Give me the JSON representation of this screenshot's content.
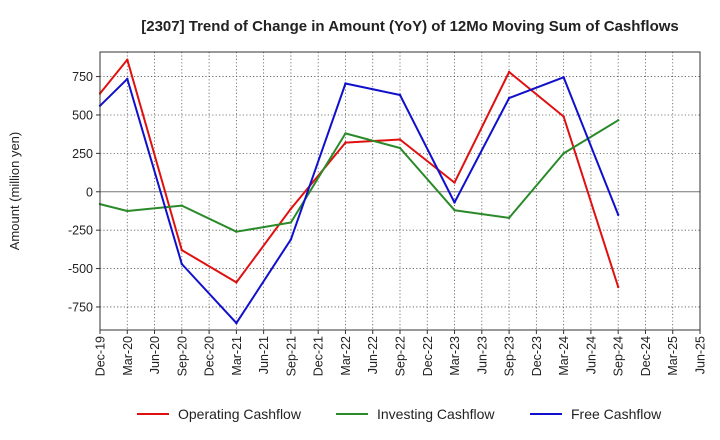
{
  "chart_data": {
    "type": "line",
    "title": "[2307]  Trend of Change in Amount (YoY) of 12Mo Moving Sum of Cashflows",
    "xlabel": "",
    "ylabel": "Amount (million yen)",
    "ylim": [
      -900,
      910
    ],
    "yticks": [
      -750,
      -500,
      -250,
      0,
      250,
      500,
      750
    ],
    "ytick_labels": [
      "-750",
      "-500",
      "-250",
      "0",
      "250",
      "500",
      "750"
    ],
    "categories": [
      "Dec-19",
      "Mar-20",
      "Jun-20",
      "Sep-20",
      "Dec-20",
      "Mar-21",
      "Jun-21",
      "Sep-21",
      "Dec-21",
      "Mar-22",
      "Jun-22",
      "Sep-22",
      "Dec-22",
      "Mar-23",
      "Jun-23",
      "Sep-23",
      "Dec-23",
      "Mar-24",
      "Jun-24",
      "Sep-24",
      "Dec-24",
      "Mar-25",
      "Jun-25"
    ],
    "grid": true,
    "legend_position": "bottom",
    "series": [
      {
        "name": "Operating Cashflow",
        "color": "#e01010",
        "values": [
          640,
          860,
          null,
          -380,
          null,
          -590,
          null,
          -110,
          null,
          320,
          null,
          340,
          null,
          60,
          null,
          780,
          null,
          490,
          null,
          -620,
          null,
          null,
          null
        ]
      },
      {
        "name": "Investing Cashflow",
        "color": "#2a8a2a",
        "values": [
          -80,
          -125,
          null,
          -90,
          null,
          -260,
          null,
          -200,
          null,
          380,
          null,
          285,
          null,
          -120,
          null,
          -170,
          null,
          250,
          null,
          465,
          null,
          null,
          null
        ]
      },
      {
        "name": "Free Cashflow",
        "color": "#1010cc",
        "values": [
          560,
          735,
          null,
          -470,
          null,
          -855,
          null,
          -310,
          null,
          705,
          null,
          630,
          null,
          -70,
          null,
          610,
          null,
          745,
          null,
          -150,
          null,
          null,
          null
        ]
      }
    ]
  }
}
